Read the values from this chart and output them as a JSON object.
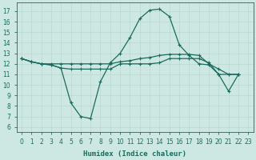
{
  "xlabel": "Humidex (Indice chaleur)",
  "bg_color": "#cde8e2",
  "line_color": "#1a6b5e",
  "grid_color": "#b8d8d0",
  "xlim": [
    -0.5,
    23.5
  ],
  "ylim": [
    5.5,
    17.8
  ],
  "xticks": [
    0,
    1,
    2,
    3,
    4,
    5,
    6,
    7,
    8,
    9,
    10,
    11,
    12,
    13,
    14,
    15,
    16,
    17,
    18,
    19,
    20,
    21,
    22,
    23
  ],
  "yticks": [
    6,
    7,
    8,
    9,
    10,
    11,
    12,
    13,
    14,
    15,
    16,
    17
  ],
  "series1": [
    12.5,
    12.2,
    12.0,
    11.9,
    11.6,
    8.3,
    7.0,
    6.8,
    10.3,
    12.1,
    13.0,
    14.5,
    16.3,
    17.1,
    17.2,
    16.5,
    13.8,
    12.8,
    12.0,
    11.9,
    11.0,
    9.4,
    11.0
  ],
  "series2": [
    12.5,
    12.2,
    12.0,
    11.9,
    11.6,
    11.5,
    11.5,
    11.5,
    11.5,
    11.5,
    12.0,
    12.0,
    12.0,
    12.0,
    12.1,
    12.5,
    12.5,
    12.5,
    12.5,
    12.1,
    11.0,
    11.0,
    11.0
  ],
  "series3": [
    12.5,
    12.2,
    12.0,
    12.0,
    12.0,
    12.0,
    12.0,
    12.0,
    12.0,
    12.0,
    12.2,
    12.3,
    12.5,
    12.6,
    12.8,
    12.9,
    12.9,
    12.9,
    12.8,
    12.0,
    11.5,
    11.0,
    11.0
  ],
  "markersize": 2.5,
  "linewidth": 0.9
}
